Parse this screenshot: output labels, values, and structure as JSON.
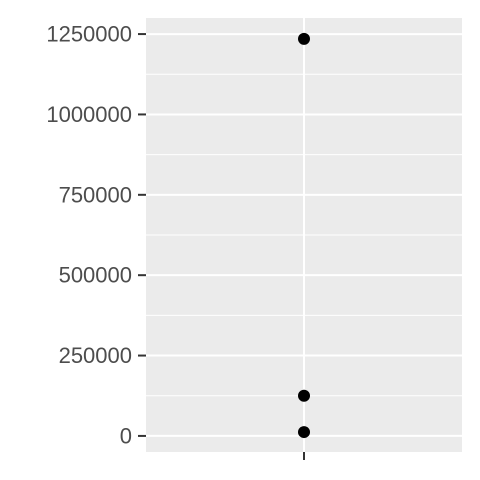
{
  "chart_data": {
    "type": "scatter",
    "title": "",
    "xlabel": "",
    "ylabel": "",
    "ylim": [
      -50000,
      1300000
    ],
    "y_ticks": [
      0,
      250000,
      500000,
      750000,
      1000000,
      1250000
    ],
    "y_tick_labels": [
      "0",
      "250000",
      "500000",
      "750000",
      "1000000",
      "1250000"
    ],
    "x_categories": [
      ""
    ],
    "grid": true,
    "legend": "none",
    "series": [
      {
        "color": "#000000",
        "points": [
          {
            "x": "",
            "y": 1235000
          },
          {
            "x": "",
            "y": 125000
          },
          {
            "x": "",
            "y": 12000
          }
        ]
      }
    ],
    "colors": {
      "panel_background": "#ebebeb",
      "grid_major": "#ffffff",
      "tick_text": "#4d4d4d",
      "tick_mark": "#333333",
      "point": "#000000"
    }
  }
}
